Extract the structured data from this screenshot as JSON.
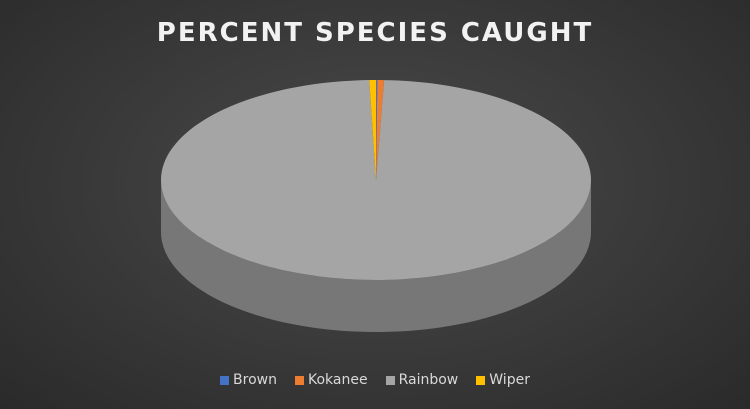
{
  "chart_data": {
    "type": "pie",
    "title": "PERCENT SPECIES CAUGHT",
    "categories": [
      "Brown",
      "Kokanee",
      "Rainbow",
      "Wiper"
    ],
    "values": [
      0.1,
      0.5,
      98.9,
      0.5
    ],
    "colors": [
      "#4472c4",
      "#ed7d31",
      "#a5a5a5",
      "#ffc000"
    ],
    "style": "3d",
    "legend_position": "bottom"
  }
}
